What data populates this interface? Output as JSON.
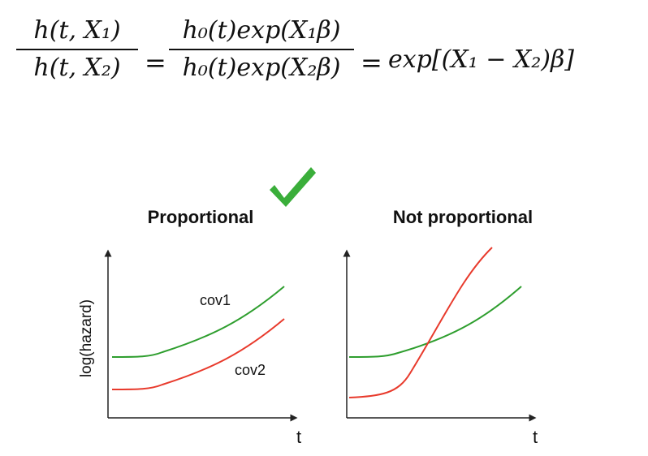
{
  "formula": {
    "frac1_num": "h(t, X₁)",
    "frac1_den": "h(t, X₂)",
    "eq": "=",
    "frac2_num": "h₀(t)exp(X₁β)",
    "frac2_den": "h₀(t)exp(X₂β)",
    "rhs": "exp[(X₁ − X₂)β]"
  },
  "panels": {
    "left_title": "Proportional",
    "right_title": "Not proportional",
    "y_label": "log(hazard)",
    "x_label_left": "t",
    "x_label_right": "t",
    "cov1_label": "cov1",
    "cov2_label": "cov2"
  },
  "colors": {
    "green": "#2e9e2e",
    "red": "#e83a2c",
    "check": "#3aae3a"
  }
}
